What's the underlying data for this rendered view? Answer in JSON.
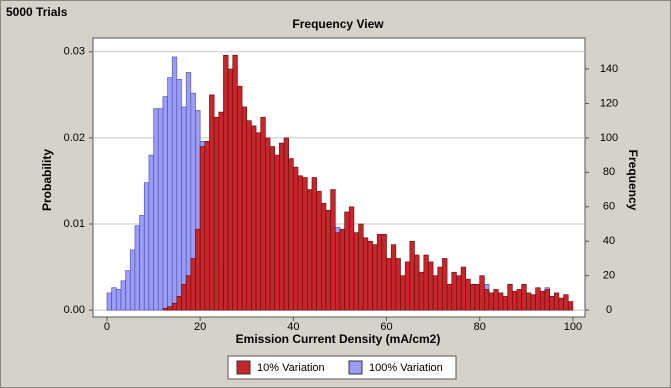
{
  "chart_data": {
    "type": "histogram",
    "annotation": "5000 Trials",
    "title": "Frequency View",
    "x_label": "Emission Current Density (mA/cm2)",
    "y_label": "Probability",
    "y2_label": "Frequency",
    "bins": [
      0,
      1,
      2,
      3,
      4,
      5,
      6,
      7,
      8,
      9,
      10,
      11,
      12,
      13,
      14,
      15,
      16,
      17,
      18,
      19,
      20,
      21,
      22,
      23,
      24,
      25,
      26,
      27,
      28,
      29,
      30,
      31,
      32,
      33,
      34,
      35,
      36,
      37,
      38,
      39,
      40,
      41,
      42,
      43,
      44,
      45,
      46,
      47,
      48,
      49,
      50,
      51,
      52,
      53,
      54,
      55,
      56,
      57,
      58,
      59,
      60,
      61,
      62,
      63,
      64,
      65,
      66,
      67,
      68,
      69,
      70,
      71,
      72,
      73,
      74,
      75,
      76,
      77,
      78,
      79,
      80,
      81,
      82,
      83,
      84,
      85,
      86,
      87,
      88,
      89,
      90,
      91,
      92,
      93,
      94,
      95,
      96,
      97,
      98,
      99,
      100
    ],
    "series": [
      {
        "name": "10% Variation",
        "color": "#c8262a",
        "axis": "y2",
        "values": [
          0,
          0,
          0,
          0,
          0,
          0,
          0,
          0,
          0,
          0,
          0,
          0,
          1,
          2,
          4,
          8,
          15,
          20,
          30,
          47,
          95,
          98,
          125,
          112,
          115,
          148,
          140,
          148,
          130,
          118,
          110,
          107,
          103,
          112,
          100,
          95,
          90,
          97,
          100,
          88,
          83,
          78,
          77,
          70,
          77,
          69,
          62,
          58,
          70,
          45,
          47,
          57,
          60,
          45,
          50,
          42,
          40,
          38,
          44,
          44,
          30,
          38,
          30,
          20,
          28,
          40,
          32,
          22,
          32,
          28,
          20,
          25,
          30,
          15,
          22,
          20,
          25,
          18,
          15,
          15,
          20,
          12,
          10,
          12,
          10,
          8,
          15,
          11,
          12,
          15,
          10,
          9,
          13,
          11,
          12,
          8,
          10,
          7,
          9,
          5
        ]
      },
      {
        "name": "100% Variation",
        "color": "#9a9cf6",
        "axis": "y2",
        "values": [
          10,
          13,
          12,
          17,
          23,
          35,
          49,
          55,
          74,
          90,
          117,
          117,
          124,
          135,
          147,
          134,
          118,
          138,
          126,
          116,
          98,
          74,
          58,
          38,
          24,
          16,
          12,
          8,
          6,
          4,
          3,
          3,
          2,
          3,
          2,
          2,
          3,
          2,
          2,
          2,
          2,
          1,
          2,
          1,
          2,
          1,
          1,
          2,
          1,
          48,
          1,
          1,
          1,
          0,
          1,
          1,
          0,
          1,
          1,
          0,
          1,
          1,
          0,
          1,
          0,
          1,
          0,
          1,
          0,
          1,
          0,
          1,
          0,
          0,
          1,
          0,
          0,
          1,
          0,
          0,
          0,
          15,
          0,
          1,
          0,
          0,
          0,
          1,
          0,
          0,
          0,
          0,
          0,
          0,
          13,
          0,
          0,
          0,
          0,
          0
        ]
      }
    ],
    "xlim": [
      -3,
      102.6
    ],
    "xticks": [
      0,
      20,
      40,
      60,
      80,
      100
    ],
    "ylim": [
      -0.0008,
      0.0316
    ],
    "yticks": [
      {
        "value": 0,
        "label": "0.00"
      },
      {
        "value": 0.01,
        "label": "0.01"
      },
      {
        "value": 0.02,
        "label": "0.02"
      },
      {
        "value": 0.03,
        "label": "0.03"
      }
    ],
    "y2lim": [
      -4,
      158
    ],
    "y2ticks": [
      0,
      20,
      40,
      60,
      80,
      100,
      120,
      140
    ],
    "grid": true
  }
}
